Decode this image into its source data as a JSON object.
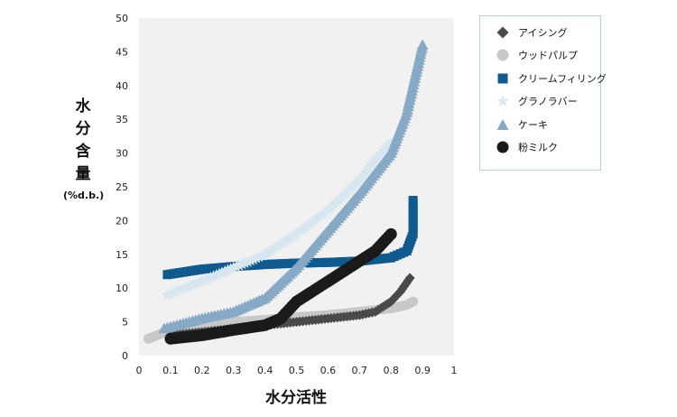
{
  "chart_data": {
    "type": "scatter",
    "title": "",
    "xlabel": "水分活性",
    "ylabel": [
      "水",
      "分",
      "含",
      "量"
    ],
    "ylabel_unit": "(%d.b.)",
    "xlim": [
      0,
      1
    ],
    "ylim": [
      0,
      50
    ],
    "x_ticks": [
      "0",
      "0.1",
      "0.2",
      "0.3",
      "0.4",
      "0.5",
      "0.6",
      "0.7",
      "0.8",
      "0.9",
      "1"
    ],
    "y_ticks": [
      "0",
      "5",
      "10",
      "15",
      "20",
      "25",
      "30",
      "35",
      "40",
      "45",
      "50"
    ],
    "grid": false,
    "legend_position": "right",
    "series": [
      {
        "name": "アイシング",
        "marker": "diamond",
        "color": "#4a4a4a",
        "points": [
          [
            0.1,
            3.0
          ],
          [
            0.2,
            3.5
          ],
          [
            0.3,
            4.0
          ],
          [
            0.4,
            4.5
          ],
          [
            0.5,
            5.0
          ],
          [
            0.6,
            5.5
          ],
          [
            0.7,
            6.0
          ],
          [
            0.75,
            6.5
          ],
          [
            0.8,
            8.0
          ],
          [
            0.83,
            9.5
          ],
          [
            0.86,
            11.5
          ]
        ]
      },
      {
        "name": "ウッドパルプ",
        "marker": "circle",
        "color": "#c8c8c8",
        "points": [
          [
            0.03,
            2.5
          ],
          [
            0.1,
            3.8
          ],
          [
            0.2,
            4.5
          ],
          [
            0.3,
            5.0
          ],
          [
            0.4,
            5.3
          ],
          [
            0.5,
            5.7
          ],
          [
            0.6,
            6.0
          ],
          [
            0.7,
            6.5
          ],
          [
            0.8,
            7.0
          ],
          [
            0.85,
            7.5
          ],
          [
            0.87,
            8.0
          ]
        ]
      },
      {
        "name": "クリームフィリング",
        "marker": "square",
        "color": "#0f5a8e",
        "points": [
          [
            0.09,
            12.0
          ],
          [
            0.2,
            12.8
          ],
          [
            0.3,
            13.2
          ],
          [
            0.4,
            13.5
          ],
          [
            0.5,
            13.7
          ],
          [
            0.6,
            13.8
          ],
          [
            0.7,
            14.0
          ],
          [
            0.8,
            14.5
          ],
          [
            0.85,
            15.5
          ],
          [
            0.87,
            18.0
          ],
          [
            0.87,
            23.0
          ]
        ]
      },
      {
        "name": "グラノラバー",
        "marker": "star",
        "color": "#d8e7ef",
        "points": [
          [
            0.09,
            9.0
          ],
          [
            0.2,
            11.0
          ],
          [
            0.3,
            13.0
          ],
          [
            0.4,
            15.0
          ],
          [
            0.5,
            18.0
          ],
          [
            0.6,
            21.5
          ],
          [
            0.7,
            26.0
          ],
          [
            0.75,
            29.0
          ],
          [
            0.8,
            31.5
          ]
        ]
      },
      {
        "name": "ケーキ",
        "marker": "triangle",
        "color": "#86a9c5",
        "points": [
          [
            0.08,
            4.0
          ],
          [
            0.2,
            5.5
          ],
          [
            0.3,
            6.5
          ],
          [
            0.4,
            8.5
          ],
          [
            0.5,
            13.0
          ],
          [
            0.6,
            18.5
          ],
          [
            0.7,
            24.0
          ],
          [
            0.8,
            30.0
          ],
          [
            0.85,
            36.0
          ],
          [
            0.88,
            42.0
          ],
          [
            0.9,
            46.0
          ]
        ]
      },
      {
        "name": "粉ミルク",
        "marker": "circle",
        "color": "#1a1a1a",
        "points": [
          [
            0.1,
            2.5
          ],
          [
            0.2,
            3.0
          ],
          [
            0.3,
            3.8
          ],
          [
            0.4,
            4.5
          ],
          [
            0.45,
            5.5
          ],
          [
            0.5,
            8.0
          ],
          [
            0.6,
            11.0
          ],
          [
            0.7,
            14.0
          ],
          [
            0.75,
            15.5
          ],
          [
            0.8,
            18.0
          ]
        ]
      }
    ]
  }
}
